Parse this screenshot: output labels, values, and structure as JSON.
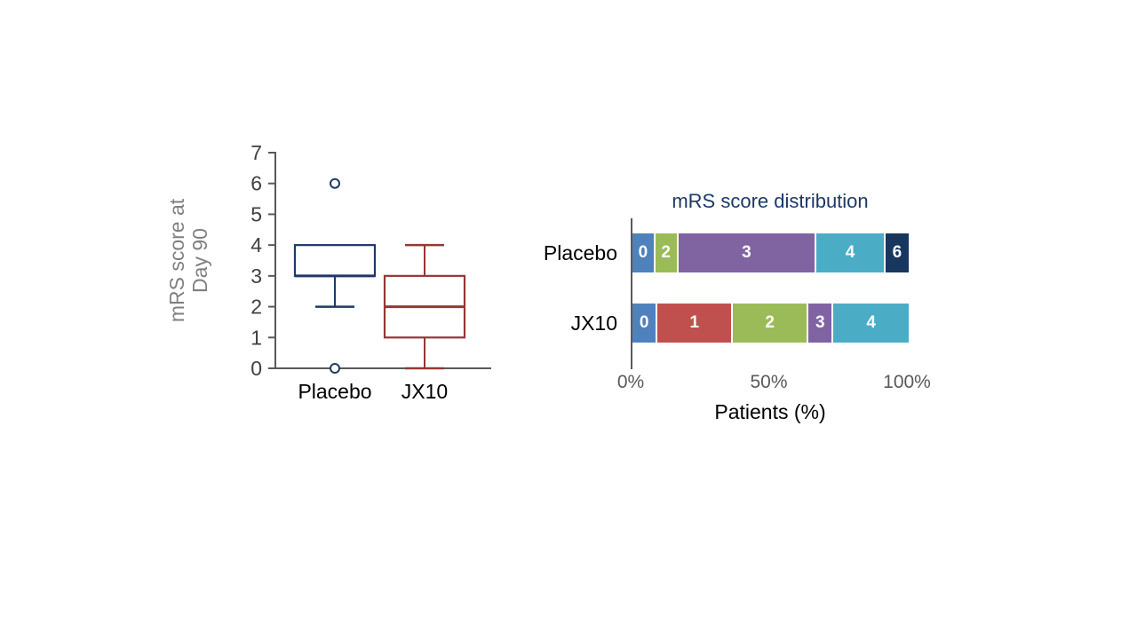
{
  "figure": {
    "background": "#ffffff"
  },
  "chart_data": [
    {
      "type": "box",
      "id": "mrs-day90-boxplot",
      "ylabel": "mRS score at Day 90",
      "ylabel_lines": [
        "mRS score at",
        "Day 90"
      ],
      "ylim": [
        0,
        7
      ],
      "yticks": [
        "0",
        "1",
        "2",
        "3",
        "4",
        "5",
        "6",
        "7"
      ],
      "categories": [
        "Placebo",
        "JX10"
      ],
      "series": [
        {
          "name": "Placebo",
          "color": "#203864",
          "q1": 3,
          "median": 3,
          "q3": 4,
          "whisker_low": 2,
          "whisker_high": 4,
          "outliers": [
            6,
            0
          ]
        },
        {
          "name": "JX10",
          "color": "#953735",
          "q1": 1,
          "median": 2,
          "q3": 3,
          "whisker_low": 0,
          "whisker_high": 4,
          "outliers": []
        }
      ],
      "axis_color": "#595959",
      "tick_label_color": "#404040",
      "ylabel_color": "#7F7F7F",
      "category_label_color": "#000000",
      "grid": false
    },
    {
      "type": "bar",
      "id": "mrs-score-distribution",
      "orientation": "horizontal",
      "stacked": true,
      "title": "mRS score distribution",
      "title_color": "#1F3864",
      "xlabel": "Patients (%)",
      "xlim": [
        0,
        100
      ],
      "xticks": [
        {
          "label": "0%",
          "value": 0
        },
        {
          "label": "50%",
          "value": 50
        },
        {
          "label": "100%",
          "value": 100
        }
      ],
      "xtick_color": "#595959",
      "axis_color": "#595959",
      "categories": [
        "Placebo",
        "JX10"
      ],
      "legend": "none",
      "grid": false,
      "rows": [
        {
          "name": "Placebo",
          "segments": [
            {
              "label": "0",
              "value": 8.3,
              "color": "#4F81BD"
            },
            {
              "label": "2",
              "value": 8.3,
              "color": "#9BBB59"
            },
            {
              "label": "3",
              "value": 50.0,
              "color": "#8064A2"
            },
            {
              "label": "4",
              "value": 25.0,
              "color": "#4BACC6"
            },
            {
              "label": "6",
              "value": 8.4,
              "color": "#17375E"
            }
          ]
        },
        {
          "name": "JX10",
          "segments": [
            {
              "label": "0",
              "value": 9.1,
              "color": "#4F81BD"
            },
            {
              "label": "1",
              "value": 27.3,
              "color": "#C0504D"
            },
            {
              "label": "2",
              "value": 27.3,
              "color": "#9BBB59"
            },
            {
              "label": "3",
              "value": 9.1,
              "color": "#8064A2"
            },
            {
              "label": "4",
              "value": 27.2,
              "color": "#4BACC6"
            }
          ]
        }
      ]
    }
  ]
}
